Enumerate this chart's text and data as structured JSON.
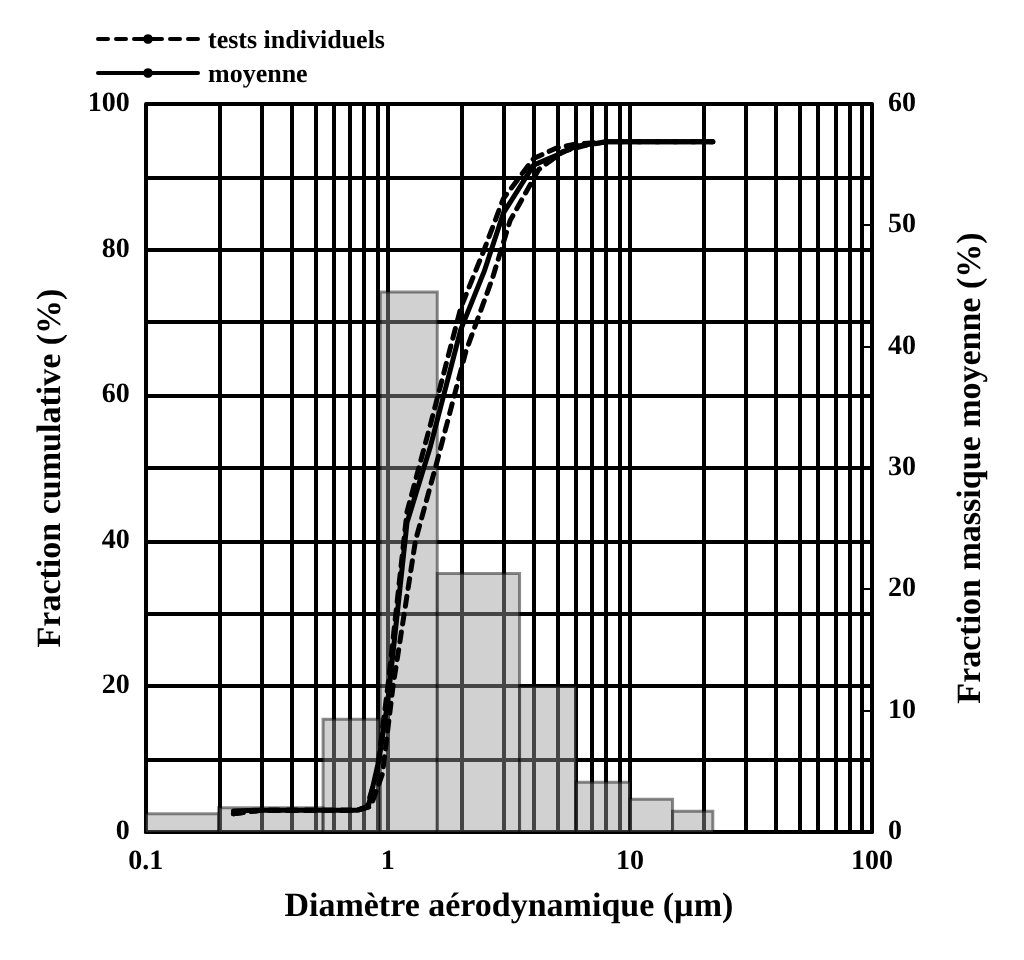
{
  "chart_data": {
    "type": "line",
    "xlabel": "Diamètre aérodynamique (µm)",
    "ylabel": "Fraction cumulative (%)",
    "y2label": "Fraction massique moyenne (%)",
    "bins": [
      0.1,
      0.2,
      0.54,
      0.93,
      1.6,
      3.5,
      6,
      10,
      15,
      22
    ],
    "series": [
      {
        "type": "histogram",
        "axis": "y2",
        "color": "#999999",
        "values": [
          1.5,
          2,
          9.3,
          44.5,
          21.3,
          12,
          4.1,
          2.7,
          1.7
        ]
      },
      {
        "name": "tests individuels",
        "color": "#000000",
        "line_style": "dashed",
        "x": [
          0.23,
          0.3,
          0.4,
          0.5,
          0.6,
          0.75,
          0.82,
          0.9,
          1,
          1.2,
          1.5,
          2,
          2.5,
          3,
          4,
          5,
          6,
          8,
          12,
          22
        ],
        "values": [
          2.5,
          3,
          3,
          3,
          3,
          3,
          3.5,
          8,
          20,
          44,
          56,
          72,
          80,
          87,
          92.5,
          94,
          94.5,
          94.8,
          94.8,
          94.8
        ]
      },
      {
        "color": "#000000",
        "line_style": "dashed",
        "x": [
          0.23,
          0.3,
          0.4,
          0.5,
          0.6,
          0.75,
          0.85,
          0.95,
          1.05,
          1.3,
          1.6,
          2.1,
          2.7,
          3.2,
          4.2,
          5.3,
          6.5,
          8,
          12,
          22
        ],
        "values": [
          2.5,
          3,
          3,
          3,
          3,
          3,
          3.5,
          8,
          20,
          40,
          51,
          66,
          76,
          84,
          91,
          93.5,
          94.3,
          94.8,
          94.8,
          94.8
        ]
      },
      {
        "name": "moyenne",
        "color": "#000000",
        "line_style": "solid",
        "x": [
          0.23,
          0.3,
          0.4,
          0.5,
          0.6,
          0.75,
          0.83,
          0.92,
          1,
          1.2,
          1.5,
          2,
          2.5,
          3,
          4,
          5,
          6,
          8,
          12,
          22
        ],
        "values": [
          2.9,
          3,
          3,
          3,
          3,
          3,
          3.5,
          10,
          18,
          42.5,
          53,
          69,
          77,
          85,
          91.6,
          93,
          94.2,
          94.8,
          94.8,
          94.8
        ]
      }
    ],
    "marker": "none",
    "log": "x",
    "grid": true,
    "legend": "top left",
    "xlim": [
      0.1,
      100
    ],
    "xticks": [
      0.1,
      {
        "value": 0.2,
        "label": null
      },
      {
        "value": 0.3,
        "label": null
      },
      {
        "value": 0.4,
        "label": null
      },
      {
        "value": 0.5,
        "label": null
      },
      {
        "value": 0.6,
        "label": null
      },
      {
        "value": 0.7,
        "label": null
      },
      {
        "value": 0.8,
        "label": null
      },
      {
        "value": 0.9,
        "label": null
      },
      1,
      {
        "value": 2,
        "label": null
      },
      {
        "value": 3,
        "label": null
      },
      {
        "value": 4,
        "label": null
      },
      {
        "value": 5,
        "label": null
      },
      {
        "value": 6,
        "label": null
      },
      {
        "value": 7,
        "label": null
      },
      {
        "value": 8,
        "label": null
      },
      {
        "value": 9,
        "label": null
      },
      10,
      {
        "value": 20,
        "label": null
      },
      {
        "value": 30,
        "label": null
      },
      {
        "value": 40,
        "label": null
      },
      {
        "value": 50,
        "label": null
      },
      {
        "value": 60,
        "label": null
      },
      {
        "value": 70,
        "label": null
      },
      {
        "value": 80,
        "label": null
      },
      {
        "value": 90,
        "label": null
      },
      100
    ],
    "ylim": [
      0,
      100
    ],
    "yticks": [
      0,
      {
        "value": 10,
        "label": null
      },
      20,
      {
        "value": 30,
        "label": null
      },
      40,
      {
        "value": 50,
        "label": null
      },
      60,
      {
        "value": 70,
        "label": null
      },
      80,
      {
        "value": 90,
        "label": null
      },
      100
    ],
    "y2lim": [
      0,
      60
    ],
    "y2ticks": [
      0,
      10,
      20,
      30,
      40,
      50,
      60
    ]
  }
}
